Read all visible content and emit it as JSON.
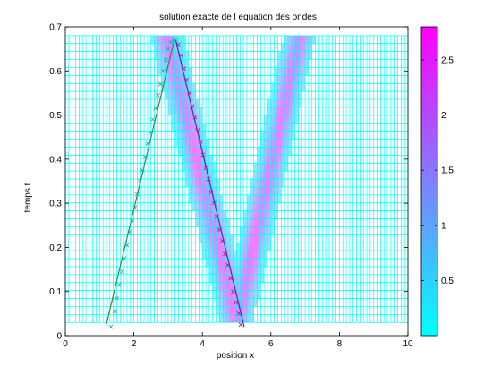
{
  "chart_data": {
    "type": "heatmap",
    "title": "solution exacte de l equation des ondes",
    "xlabel": "position x",
    "ylabel": "temps t",
    "xlim": [
      0,
      10
    ],
    "ylim": [
      0,
      0.7
    ],
    "x_ticks": [
      "0",
      "2",
      "4",
      "6",
      "8",
      "10"
    ],
    "y_ticks": [
      "0",
      "0.1",
      "0.2",
      "0.3",
      "0.4",
      "0.5",
      "0.6",
      "0.7"
    ],
    "colorbar": {
      "range": [
        0,
        2.8
      ],
      "ticks": [
        "0.5",
        "1",
        "1.5",
        "2",
        "2.5"
      ],
      "colors": [
        "#00ffff",
        "#ff00ff"
      ]
    },
    "grid_extent": {
      "x": [
        0,
        10
      ],
      "t": [
        0.03,
        0.68
      ]
    },
    "ridges": [
      {
        "x_start": 5.0,
        "x_end": 2.95,
        "t_start": 0.03,
        "t_end": 0.68,
        "width": 0.45,
        "peak": 2.8
      },
      {
        "x_start": 5.0,
        "x_end": 6.85,
        "t_start": 0.03,
        "t_end": 0.68,
        "width": 0.45,
        "peak": 2.8
      }
    ],
    "lines": [
      {
        "name": "",
        "color": "#2e8b57",
        "x": [
          1.18,
          3.18
        ],
        "y": [
          0.02,
          0.67
        ]
      },
      {
        "name": "",
        "color": "#3333cc",
        "x": [
          3.22,
          5.22
        ],
        "y": [
          0.67,
          0.02
        ]
      }
    ],
    "markers": [
      {
        "name": "",
        "symbol": "x",
        "color": "#20b2aa",
        "x": [
          1.33,
          1.45,
          1.5,
          1.58,
          1.66,
          1.72,
          1.8,
          1.88,
          1.95,
          2.03,
          2.1,
          2.18,
          2.25,
          2.33,
          2.4,
          2.48,
          2.55,
          2.63,
          2.7,
          2.78,
          2.85,
          2.93,
          3.0,
          3.08,
          3.15,
          3.22
        ],
        "y": [
          0.02,
          0.055,
          0.085,
          0.115,
          0.145,
          0.175,
          0.205,
          0.235,
          0.26,
          0.29,
          0.32,
          0.35,
          0.375,
          0.405,
          0.435,
          0.46,
          0.49,
          0.515,
          0.545,
          0.57,
          0.6,
          0.625,
          0.65,
          0.665,
          0.67,
          0.67
        ]
      },
      {
        "name": "",
        "symbol": "x",
        "color": "#c02080",
        "x": [
          3.3,
          3.38,
          3.46,
          3.54,
          3.62,
          3.7,
          3.78,
          3.86,
          3.94,
          4.02,
          4.1,
          4.18,
          4.26,
          4.34,
          4.42,
          4.5,
          4.58,
          4.66,
          4.74,
          4.82,
          4.9,
          4.98,
          5.06,
          5.12
        ],
        "y": [
          0.66,
          0.635,
          0.605,
          0.58,
          0.55,
          0.52,
          0.495,
          0.465,
          0.44,
          0.41,
          0.38,
          0.355,
          0.325,
          0.3,
          0.27,
          0.24,
          0.215,
          0.185,
          0.16,
          0.13,
          0.1,
          0.075,
          0.05,
          0.025
        ]
      }
    ]
  }
}
